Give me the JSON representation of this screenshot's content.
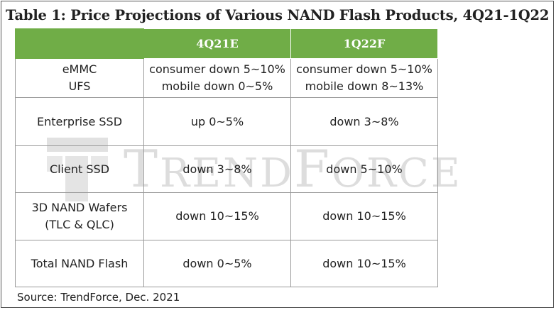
{
  "title": "Table 1: Price Projections of Various NAND Flash Products, 4Q21-1Q22",
  "table": {
    "columns": [
      "",
      "4Q21E",
      "1Q22F"
    ],
    "rows": [
      {
        "product": [
          "eMMC",
          "UFS"
        ],
        "q4": [
          "consumer down 5~10%",
          "mobile down 0~5%"
        ],
        "q1": [
          "consumer down 5~10%",
          "mobile down 8~13%"
        ]
      },
      {
        "product": [
          "Enterprise SSD"
        ],
        "q4": [
          "up 0~5%"
        ],
        "q1": [
          "down 3~8%"
        ]
      },
      {
        "product": [
          "Client SSD"
        ],
        "q4": [
          "down 3~8%"
        ],
        "q1": [
          "down 5~10%"
        ]
      },
      {
        "product": [
          "3D NAND Wafers",
          "(TLC & QLC)"
        ],
        "q4": [
          "down 10~15%"
        ],
        "q1": [
          "down 10~15%"
        ]
      },
      {
        "product": [
          "Total NAND Flash"
        ],
        "q4": [
          "down 0~5%"
        ],
        "q1": [
          "down 10~15%"
        ]
      }
    ]
  },
  "watermark": {
    "text_big_1": "T",
    "text_small_1": "REND",
    "text_big_2": "F",
    "text_small_2": "ORCE"
  },
  "source": "Source: TrendForce, Dec. 2021",
  "colors": {
    "header": "#70ad47",
    "border": "#9a9a9a"
  }
}
